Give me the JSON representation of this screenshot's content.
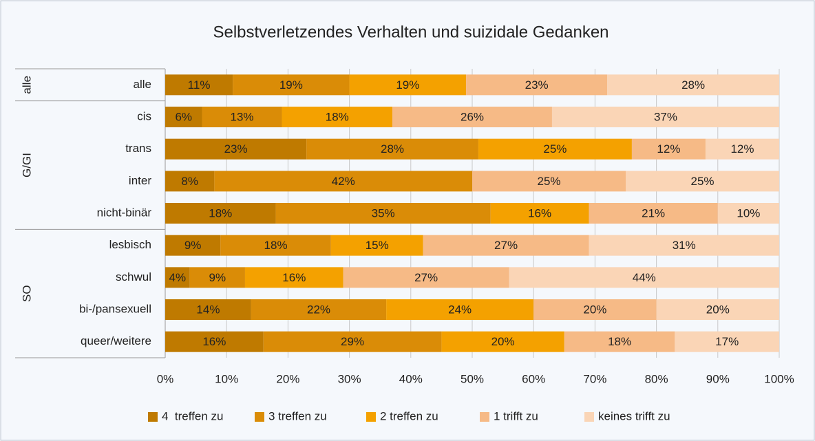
{
  "chart_data": {
    "type": "stacked-bar",
    "title": "Selbstverletzendes Verhalten und suizidale Gedanken",
    "groups": [
      {
        "label": "alle",
        "categories": [
          "alle"
        ]
      },
      {
        "label": "G/GI",
        "categories": [
          "cis",
          "trans",
          "inter",
          "nicht-binär"
        ]
      },
      {
        "label": "SO",
        "categories": [
          "lesbisch",
          "schwul",
          "bi-/pansexuell",
          "queer/weitere"
        ]
      }
    ],
    "series": [
      {
        "name": "4  treffen zu",
        "color": "#bf7a00",
        "values": [
          11,
          6,
          23,
          8,
          18,
          9,
          4,
          14,
          16
        ],
        "value_labels": [
          "11%",
          "6%",
          "23%",
          "8%",
          "18%",
          "9%",
          "4%",
          "14%",
          "16%"
        ]
      },
      {
        "name": "3 treffen zu",
        "color": "#da8c07",
        "values": [
          19,
          13,
          28,
          42,
          35,
          18,
          9,
          22,
          29
        ],
        "value_labels": [
          "19%",
          "13%",
          "28%",
          "42%",
          "35%",
          "18%",
          "9%",
          "22%",
          "29%"
        ]
      },
      {
        "name": "2 treffen zu",
        "color": "#f4a100",
        "values": [
          19,
          18,
          25,
          0,
          16,
          15,
          16,
          24,
          20
        ],
        "value_labels": [
          "19%",
          "18%",
          "25%",
          null,
          "16%",
          "15%",
          "16%",
          "24%",
          "20%"
        ]
      },
      {
        "name": "1 trifft zu",
        "color": "#f6ba86",
        "values": [
          23,
          26,
          12,
          25,
          21,
          27,
          27,
          20,
          18
        ],
        "value_labels": [
          "23%",
          "26%",
          "12%",
          "25%",
          "21%",
          "27%",
          "27%",
          "20%",
          "18%"
        ]
      },
      {
        "name": "keines trifft zu",
        "color": "#fad5b6",
        "values": [
          28,
          37,
          12,
          25,
          10,
          31,
          44,
          20,
          17
        ],
        "value_labels": [
          "28%",
          "37%",
          "12%",
          "25%",
          "10%",
          "31%",
          "44%",
          "20%",
          "17%"
        ]
      }
    ],
    "xlim": [
      0,
      100
    ],
    "xticks": [
      {
        "value": 0,
        "label": "0%"
      },
      {
        "value": 10,
        "label": "10%"
      },
      {
        "value": 20,
        "label": "20%"
      },
      {
        "value": 30,
        "label": "30%"
      },
      {
        "value": 40,
        "label": "40%"
      },
      {
        "value": 50,
        "label": "50%"
      },
      {
        "value": 60,
        "label": "60%"
      },
      {
        "value": 70,
        "label": "70%"
      },
      {
        "value": 80,
        "label": "80%"
      },
      {
        "value": 90,
        "label": "90%"
      },
      {
        "value": 100,
        "label": "100%"
      }
    ],
    "grid": true,
    "legend": "bottom"
  }
}
